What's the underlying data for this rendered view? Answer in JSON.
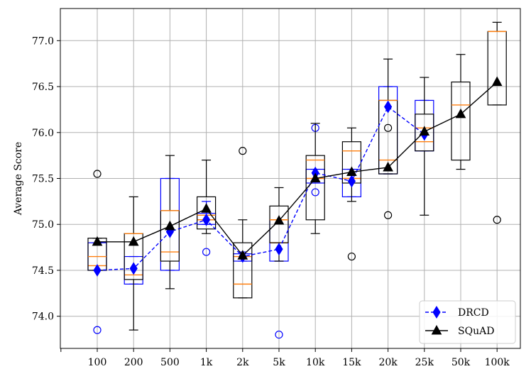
{
  "chart_data": {
    "type": "box",
    "ylabel": "Average Score",
    "xlabel": "",
    "title": "",
    "categories": [
      "100",
      "200",
      "500",
      "1k",
      "2k",
      "5k",
      "10k",
      "15k",
      "20k",
      "25k",
      "50k",
      "100k"
    ],
    "ylim": [
      73.65,
      77.35
    ],
    "yticks": [
      74.0,
      74.5,
      75.0,
      75.5,
      76.0,
      76.5,
      77.0
    ],
    "grid": true,
    "legend_position": "bottom-right",
    "series": [
      {
        "name": "DRCD",
        "color": "#0000ff",
        "median_color": "#ff7f0e",
        "line_style": "dashed",
        "marker": "diamond",
        "mean": [
          74.5,
          74.52,
          74.92,
          75.05,
          74.65,
          74.73,
          75.56,
          75.47,
          76.28,
          75.98,
          null,
          null
        ],
        "boxes": [
          {
            "whislo": 74.5,
            "q1": 74.5,
            "med": 74.55,
            "q3": 74.8,
            "whishi": 74.8,
            "fliers": [
              73.85
            ]
          },
          {
            "whislo": 74.35,
            "q1": 74.35,
            "med": 74.45,
            "q3": 74.65,
            "whishi": 74.65,
            "fliers": []
          },
          {
            "whislo": 74.5,
            "q1": 74.5,
            "med": 74.7,
            "q3": 75.5,
            "whishi": 75.5,
            "fliers": []
          },
          {
            "whislo": 75.0,
            "q1": 75.0,
            "med": 75.05,
            "q3": 75.12,
            "whishi": 75.25,
            "fliers": [
              74.7
            ]
          },
          {
            "whislo": 74.6,
            "q1": 74.6,
            "med": 74.65,
            "q3": 74.68,
            "whishi": 74.7,
            "fliers": []
          },
          {
            "whislo": 74.6,
            "q1": 74.6,
            "med": 74.8,
            "q3": 75.05,
            "whishi": 75.05,
            "fliers": [
              73.8
            ]
          },
          {
            "whislo": 75.45,
            "q1": 75.45,
            "med": 75.5,
            "q3": 75.6,
            "whishi": 75.6,
            "fliers": [
              76.05,
              75.35
            ]
          },
          {
            "whislo": 75.3,
            "q1": 75.3,
            "med": 75.5,
            "q3": 75.6,
            "whishi": 75.6,
            "fliers": []
          },
          {
            "whislo": 75.55,
            "q1": 75.55,
            "med": 75.7,
            "q3": 76.5,
            "whishi": 76.5,
            "fliers": []
          },
          {
            "whislo": 75.8,
            "q1": 75.8,
            "med": 75.9,
            "q3": 76.35,
            "whishi": 76.35,
            "fliers": []
          },
          null,
          null
        ]
      },
      {
        "name": "SQuAD",
        "color": "#000000",
        "median_color": "#ff7f0e",
        "line_style": "solid",
        "marker": "triangle",
        "mean": [
          74.81,
          74.81,
          74.98,
          75.17,
          74.66,
          75.04,
          75.5,
          75.57,
          75.62,
          76.01,
          76.2,
          76.55
        ],
        "boxes": [
          {
            "whislo": 74.5,
            "q1": 74.5,
            "med": 74.65,
            "q3": 74.85,
            "whishi": 74.85,
            "fliers": [
              75.55
            ]
          },
          {
            "whislo": 73.85,
            "q1": 74.4,
            "med": 74.9,
            "q3": 74.9,
            "whishi": 75.3,
            "fliers": []
          },
          {
            "whislo": 74.3,
            "q1": 74.6,
            "med": 75.15,
            "q3": 75.15,
            "whishi": 75.75,
            "fliers": []
          },
          {
            "whislo": 74.9,
            "q1": 74.95,
            "med": 75.1,
            "q3": 75.3,
            "whishi": 75.7,
            "fliers": []
          },
          {
            "whislo": 74.2,
            "q1": 74.2,
            "med": 74.35,
            "q3": 74.8,
            "whishi": 75.05,
            "fliers": [
              75.8
            ]
          },
          {
            "whislo": 74.6,
            "q1": 74.8,
            "med": 75.05,
            "q3": 75.2,
            "whishi": 75.4,
            "fliers": []
          },
          {
            "whislo": 74.9,
            "q1": 75.05,
            "med": 75.7,
            "q3": 75.75,
            "whishi": 76.1,
            "fliers": []
          },
          {
            "whislo": 75.25,
            "q1": 75.45,
            "med": 75.8,
            "q3": 75.9,
            "whishi": 76.05,
            "fliers": [
              74.65
            ]
          },
          {
            "whislo": 75.55,
            "q1": 75.55,
            "med": 76.35,
            "q3": 76.35,
            "whishi": 76.8,
            "fliers": [
              76.05,
              75.1
            ]
          },
          {
            "whislo": 75.1,
            "q1": 75.8,
            "med": 76.05,
            "q3": 76.2,
            "whishi": 76.6,
            "fliers": []
          },
          {
            "whislo": 75.6,
            "q1": 75.7,
            "med": 76.3,
            "q3": 76.55,
            "whishi": 76.85,
            "fliers": []
          },
          {
            "whislo": 76.3,
            "q1": 76.3,
            "med": 77.1,
            "q3": 77.1,
            "whishi": 77.2,
            "fliers": [
              75.05
            ]
          }
        ]
      }
    ]
  }
}
